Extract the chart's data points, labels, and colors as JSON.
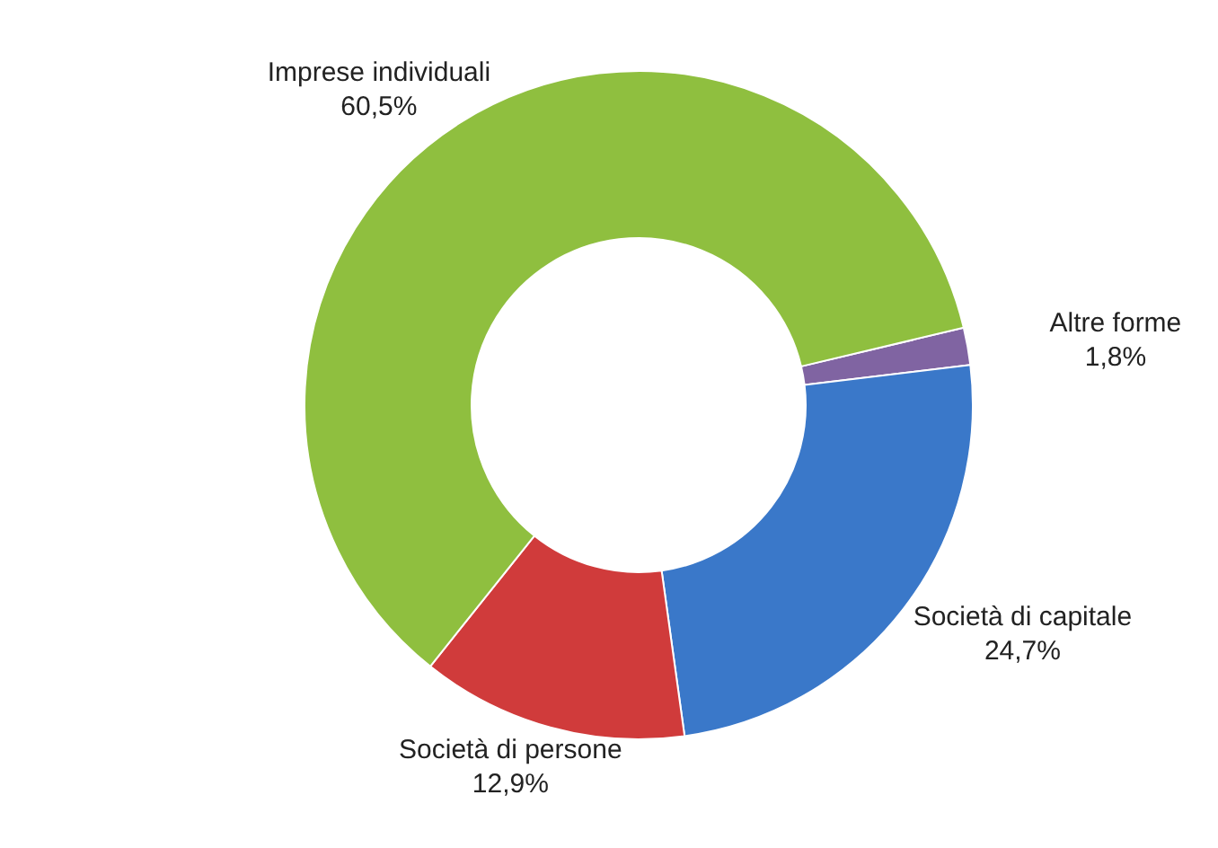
{
  "chart_data": {
    "type": "donut",
    "categories": [
      "Altre forme",
      "Società di capitale",
      "Società di persone",
      "Imprese individuali"
    ],
    "values": [
      1.8,
      24.7,
      12.9,
      60.5
    ],
    "colors": [
      "#8064a2",
      "#3a78c9",
      "#d03b3b",
      "#8fbf3f"
    ],
    "value_labels": [
      "1,8%",
      "24,7%",
      "12,9%",
      "60,5%"
    ]
  }
}
